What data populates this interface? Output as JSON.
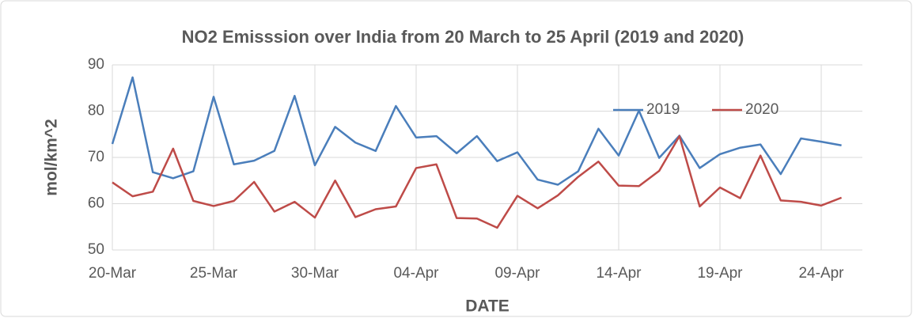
{
  "chart_data": {
    "type": "line",
    "title": "NO2 Emisssion over India from 20 March to 25 April (2019 and 2020)",
    "x_label": "DATE",
    "y_label": "mol/km^2",
    "categories": [
      "20-Mar",
      null,
      null,
      null,
      null,
      "25-Mar",
      null,
      null,
      null,
      null,
      "30-Mar",
      null,
      null,
      null,
      null,
      "04-Apr",
      null,
      null,
      null,
      null,
      "09-Apr",
      null,
      null,
      null,
      null,
      "14-Apr",
      null,
      null,
      null,
      null,
      "19-Apr",
      null,
      null,
      null,
      null,
      "24-Apr",
      null
    ],
    "series": [
      {
        "name": "2019",
        "color": "#4a7ebb",
        "values": [
          72.9,
          87.3,
          66.8,
          65.5,
          67,
          83.1,
          68.5,
          69.3,
          71.4,
          83.3,
          68.3,
          76.6,
          73.2,
          71.4,
          81.1,
          74.3,
          74.6,
          70.9,
          74.6,
          69.2,
          71.1,
          65.2,
          64.1,
          67,
          76.2,
          70.4,
          80.1,
          69.9,
          74.7,
          67.7,
          70.7,
          72.1,
          72.8,
          66.4,
          74.1,
          73.4,
          72.6
        ]
      },
      {
        "name": "2020",
        "color": "#be4b48",
        "values": [
          64.6,
          61.6,
          62.6,
          71.9,
          60.6,
          59.5,
          60.6,
          64.7,
          58.3,
          60.4,
          57,
          65,
          57.1,
          58.8,
          59.4,
          67.7,
          68.5,
          56.9,
          56.8,
          54.8,
          61.7,
          59,
          61.8,
          65.8,
          69.1,
          63.9,
          63.8,
          67.1,
          74.6,
          59.4,
          63.5,
          61.2,
          70.4,
          60.7,
          60.4,
          59.6,
          61.3
        ]
      }
    ],
    "ylim": [
      50,
      90
    ],
    "yticks": [
      50,
      60,
      70,
      80,
      90
    ],
    "grid": true,
    "legend": "upper right"
  }
}
